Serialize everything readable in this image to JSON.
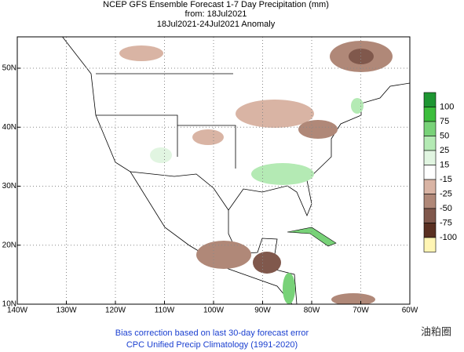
{
  "header": {
    "line1": "NCEP GFS Ensemble Forecast 1-7 Day Precipitation (mm)",
    "line2": "from: 18Jul2021",
    "line3": "18Jul2021-24Jul2021 Anomaly"
  },
  "map": {
    "lon_ticks": [
      {
        "value": -140,
        "label": "140W"
      },
      {
        "value": -130,
        "label": "130W"
      },
      {
        "value": -120,
        "label": "120W"
      },
      {
        "value": -110,
        "label": "110W"
      },
      {
        "value": -100,
        "label": "100W"
      },
      {
        "value": -90,
        "label": "90W"
      },
      {
        "value": -80,
        "label": "80W"
      },
      {
        "value": -70,
        "label": "70W"
      },
      {
        "value": -60,
        "label": "60W"
      }
    ],
    "lat_ticks": [
      {
        "value": 10,
        "label": "10N"
      },
      {
        "value": 20,
        "label": "20N"
      },
      {
        "value": 30,
        "label": "30N"
      },
      {
        "value": 40,
        "label": "40N"
      },
      {
        "value": 50,
        "label": "50N"
      }
    ],
    "colorbar": {
      "labels": [
        100,
        75,
        50,
        25,
        15,
        -15,
        -25,
        -50,
        -75,
        -100
      ],
      "colors": [
        "#1e9632",
        "#3cbe3c",
        "#78d278",
        "#b4eab4",
        "#e1f5e1",
        "#ffffff",
        "#d9b4a4",
        "#b08878",
        "#80584c",
        "#5a3022",
        "#fff5b4"
      ]
    }
  },
  "footer": {
    "line1": "Bias correction based on last 30-day forecast error",
    "line2": "CPC Unified Precip Climatology (1991-2020)"
  },
  "watermark": "油粕圈"
}
